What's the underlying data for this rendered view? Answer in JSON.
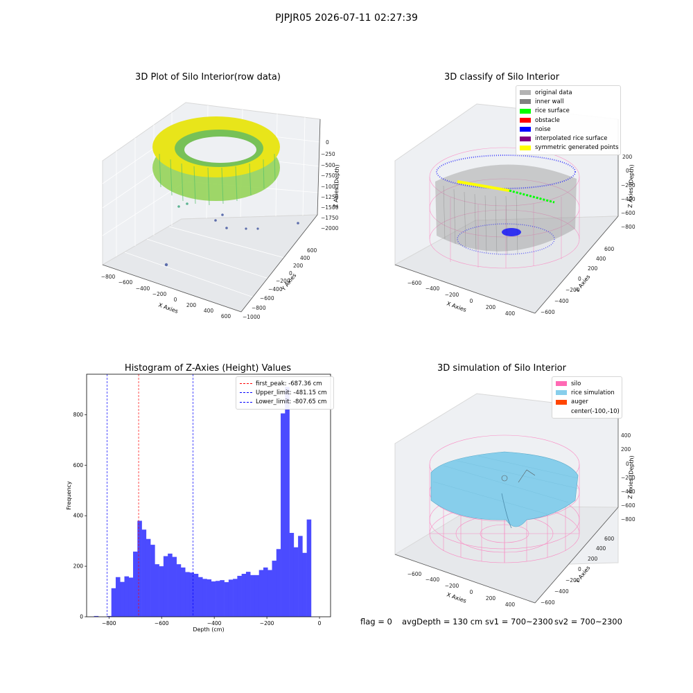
{
  "suptitle": "PJPJR05 2026-07-11 02:27:39",
  "footer": {
    "flag": "flag = 0",
    "avg_depth": "avgDepth = 130 cm",
    "sv1": "sv1 = 700~2300",
    "sv2": "sv2 = 700~2300"
  },
  "colors": {
    "histogram_bar": "#4b4bff",
    "first_peak_line": "#ff0000",
    "limit_line": "#0000ff",
    "silo_wire": "#ff69b4",
    "rice_surface_fill": "#87ceeb",
    "auger": "#ff4500"
  },
  "plot1": {
    "title": "3D Plot of Silo Interior(row data)",
    "xlabel": "X Axies",
    "ylabel": "Y Axies",
    "zlabel": "Z Axies (Depth)",
    "x_ticks": [
      "−800",
      "−600",
      "−400",
      "−200",
      "0",
      "200",
      "400",
      "600"
    ],
    "y_ticks": [
      "−1000",
      "−800",
      "−600",
      "−400",
      "−200",
      "0",
      "200",
      "400",
      "600"
    ],
    "z_ticks": [
      "0",
      "−250",
      "−500",
      "−750",
      "−1000",
      "−1250",
      "−1500",
      "−1750",
      "−2000"
    ]
  },
  "plot2": {
    "title": "3D classify of Silo Interior",
    "xlabel": "X Axies",
    "ylabel": "Y Axies",
    "zlabel": "Z Axies (Depth)",
    "x_ticks": [
      "−600",
      "−400",
      "−200",
      "0",
      "200",
      "400"
    ],
    "y_ticks": [
      "−600",
      "−400",
      "−200",
      "0",
      "200",
      "400",
      "600"
    ],
    "z_ticks": [
      "200",
      "0",
      "−200",
      "−400",
      "−600",
      "−800"
    ],
    "legend": [
      {
        "label": "original data",
        "color": "#b3b3b3"
      },
      {
        "label": "inner wall",
        "color": "#808080"
      },
      {
        "label": "rice surface",
        "color": "#00ff00"
      },
      {
        "label": "obstacle",
        "color": "#ff0000"
      },
      {
        "label": "noise",
        "color": "#0000ff"
      },
      {
        "label": "interpolated rice surface",
        "color": "#800080"
      },
      {
        "label": "symmetric generated points",
        "color": "#ffff00"
      }
    ]
  },
  "plot3": {
    "title": "Histogram of Z-Axies (Height) Values",
    "xlabel": "Depth (cm)",
    "ylabel": "Frequency",
    "legend": [
      {
        "label": "first_peak: -687.36 cm",
        "color": "#ff0000"
      },
      {
        "label": "Upper_limit: -481.15 cm",
        "color": "#0000ff"
      },
      {
        "label": "Lower_limit: -807.65 cm",
        "color": "#0000ff"
      }
    ]
  },
  "plot4": {
    "title": "3D simulation of Silo Interior",
    "xlabel": "X Axies",
    "ylabel": "Y Axies",
    "zlabel": "Z Axies (Depth)",
    "x_ticks": [
      "−600",
      "−400",
      "−200",
      "0",
      "200",
      "400"
    ],
    "y_ticks": [
      "−600",
      "−400",
      "−200",
      "0",
      "200",
      "400",
      "600"
    ],
    "z_ticks": [
      "400",
      "200",
      "0",
      "−200",
      "−400",
      "−600",
      "−800"
    ],
    "legend": [
      {
        "label": "silo",
        "color": "#ff69b4"
      },
      {
        "label": "rice simulation",
        "color": "#87ceeb"
      },
      {
        "label": "auger",
        "color": "#ff4500"
      },
      {
        "label": "center(-100,-10)",
        "color": ""
      }
    ]
  },
  "chart_data": {
    "type": "bar",
    "title": "Histogram of Z-Axies (Height) Values",
    "xlabel": "Depth (cm)",
    "ylabel": "Frequency",
    "xlim": [
      -885,
      42
    ],
    "ylim": [
      0,
      960
    ],
    "x_ticks": [
      -800,
      -600,
      -400,
      -200,
      0
    ],
    "y_ticks": [
      0,
      200,
      400,
      600,
      800
    ],
    "bin_width": 16.5,
    "bin_starts": [
      -857,
      -840.5,
      -824,
      -807.5,
      -791,
      -774.5,
      -758,
      -741.5,
      -725,
      -708.5,
      -692,
      -675.5,
      -659,
      -642.5,
      -626,
      -609.5,
      -593,
      -576.5,
      -560,
      -543.5,
      -527,
      -510.5,
      -494,
      -477.5,
      -461,
      -444.5,
      -428,
      -411.5,
      -395,
      -378.5,
      -362,
      -345.5,
      -329,
      -312.5,
      -296,
      -279.5,
      -263,
      -246.5,
      -230,
      -213.5,
      -197,
      -180.5,
      -164,
      -147.5,
      -131,
      -114.5,
      -98,
      -81.5,
      -65,
      -48.5,
      -32,
      -15.5
    ],
    "values": [
      3,
      0,
      0,
      3,
      113,
      157,
      138,
      160,
      155,
      258,
      380,
      345,
      308,
      285,
      208,
      200,
      240,
      250,
      237,
      208,
      195,
      177,
      175,
      170,
      157,
      150,
      148,
      140,
      142,
      145,
      137,
      147,
      150,
      162,
      170,
      178,
      165,
      165,
      185,
      195,
      185,
      222,
      268,
      805,
      910,
      332,
      275,
      320,
      253,
      385,
      0,
      0
    ],
    "vlines": [
      {
        "label": "first_peak: -687.36 cm",
        "x": -687.36,
        "color": "#ff0000"
      },
      {
        "label": "Upper_limit: -481.15 cm",
        "x": -481.15,
        "color": "#0000ff"
      },
      {
        "label": "Lower_limit: -807.65 cm",
        "x": -807.65,
        "color": "#0000ff"
      }
    ],
    "legend_position": "top-right",
    "grid": false
  }
}
